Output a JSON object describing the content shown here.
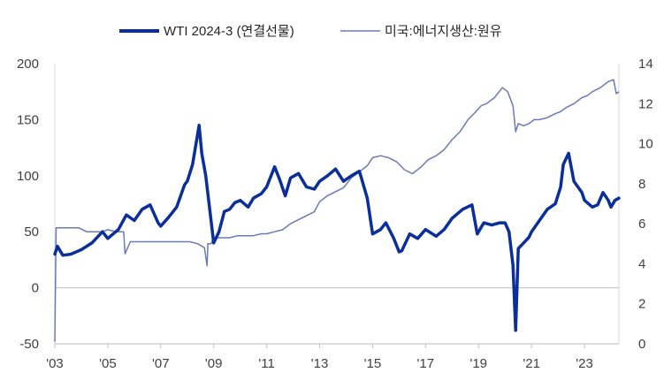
{
  "chart_data": {
    "type": "line",
    "legend": [
      {
        "label": "WTI 2024-3 (연결선물)",
        "color": "#0b2f9a",
        "axis": "left"
      },
      {
        "label": "미국:에너지생산:원유",
        "color": "#6b7ab8",
        "axis": "right"
      }
    ],
    "x_ticks": [
      "'03",
      "'05",
      "'07",
      "'09",
      "'11",
      "'13",
      "'15",
      "'17",
      "'19",
      "'21",
      "'23"
    ],
    "xlim": [
      2003.0,
      2024.3
    ],
    "y_left_ticks": [
      "-50",
      "0",
      "50",
      "100",
      "150",
      "200"
    ],
    "y_left_lim": [
      -50,
      200
    ],
    "y_right_ticks": [
      "0",
      "2",
      "4",
      "6",
      "8",
      "10",
      "12",
      "14"
    ],
    "y_right_lim": [
      0,
      14
    ],
    "legend_position": "top",
    "grid": false,
    "series": [
      {
        "name": "WTI 2024-3 (연결선물)",
        "axis": "left",
        "x": [
          2003.0,
          2003.1,
          2003.3,
          2003.6,
          2004.0,
          2004.4,
          2004.8,
          2005.0,
          2005.4,
          2005.7,
          2006.0,
          2006.3,
          2006.6,
          2006.9,
          2007.0,
          2007.3,
          2007.6,
          2007.9,
          2008.0,
          2008.2,
          2008.45,
          2008.55,
          2008.7,
          2008.9,
          2009.0,
          2009.2,
          2009.4,
          2009.6,
          2009.8,
          2010.0,
          2010.3,
          2010.5,
          2010.8,
          2011.0,
          2011.3,
          2011.5,
          2011.7,
          2011.9,
          2012.2,
          2012.5,
          2012.8,
          2013.0,
          2013.3,
          2013.6,
          2013.9,
          2014.2,
          2014.5,
          2014.8,
          2015.0,
          2015.3,
          2015.5,
          2015.8,
          2016.0,
          2016.1,
          2016.4,
          2016.7,
          2017.0,
          2017.4,
          2017.7,
          2018.0,
          2018.4,
          2018.75,
          2018.95,
          2019.2,
          2019.5,
          2019.8,
          2020.0,
          2020.15,
          2020.3,
          2020.4,
          2020.5,
          2020.7,
          2020.9,
          2021.0,
          2021.3,
          2021.6,
          2021.9,
          2022.1,
          2022.2,
          2022.4,
          2022.6,
          2022.9,
          2023.0,
          2023.3,
          2023.5,
          2023.7,
          2023.9,
          2024.0,
          2024.15,
          2024.3
        ],
        "values": [
          30,
          37,
          29,
          30,
          34,
          40,
          50,
          44,
          52,
          65,
          60,
          70,
          74,
          58,
          55,
          63,
          72,
          92,
          95,
          110,
          145,
          120,
          100,
          60,
          40,
          50,
          68,
          70,
          76,
          78,
          72,
          80,
          84,
          90,
          108,
          96,
          82,
          98,
          102,
          90,
          88,
          95,
          100,
          106,
          95,
          100,
          104,
          80,
          48,
          52,
          58,
          44,
          32,
          33,
          48,
          44,
          52,
          46,
          52,
          62,
          70,
          74,
          48,
          58,
          56,
          58,
          58,
          50,
          20,
          -38,
          35,
          40,
          45,
          50,
          60,
          70,
          75,
          90,
          110,
          120,
          95,
          85,
          78,
          72,
          74,
          85,
          78,
          72,
          78,
          80
        ]
      },
      {
        "name": "미국:에너지생산:원유",
        "axis": "right",
        "x": [
          2003.0,
          2003.05,
          2003.1,
          2003.3,
          2003.6,
          2003.9,
          2004.2,
          2004.5,
          2004.8,
          2005.0,
          2005.3,
          2005.6,
          2005.65,
          2005.85,
          2005.95,
          2006.05,
          2006.3,
          2006.6,
          2006.9,
          2007.2,
          2007.5,
          2007.8,
          2008.1,
          2008.4,
          2008.65,
          2008.75,
          2008.78,
          2008.9,
          2009.0,
          2009.3,
          2009.6,
          2009.9,
          2010.2,
          2010.5,
          2010.8,
          2011.0,
          2011.3,
          2011.6,
          2011.9,
          2012.2,
          2012.5,
          2012.8,
          2013.0,
          2013.3,
          2013.6,
          2013.9,
          2014.2,
          2014.5,
          2014.8,
          2015.0,
          2015.3,
          2015.6,
          2015.9,
          2016.2,
          2016.5,
          2016.8,
          2017.1,
          2017.4,
          2017.7,
          2018.0,
          2018.3,
          2018.6,
          2018.9,
          2019.1,
          2019.3,
          2019.6,
          2019.9,
          2020.1,
          2020.3,
          2020.4,
          2020.5,
          2020.7,
          2020.9,
          2021.1,
          2021.3,
          2021.6,
          2021.9,
          2022.1,
          2022.3,
          2022.6,
          2022.9,
          2023.1,
          2023.3,
          2023.6,
          2023.9,
          2024.1,
          2024.2,
          2024.3
        ],
        "values": [
          0.1,
          5.8,
          5.8,
          5.8,
          5.8,
          5.8,
          5.6,
          5.6,
          5.6,
          5.7,
          5.6,
          5.6,
          4.5,
          5.1,
          5.1,
          5.1,
          5.1,
          5.1,
          5.1,
          5.1,
          5.1,
          5.1,
          5.1,
          5.0,
          4.8,
          3.9,
          5.0,
          5.0,
          5.3,
          5.3,
          5.3,
          5.4,
          5.4,
          5.4,
          5.5,
          5.5,
          5.6,
          5.7,
          6.0,
          6.2,
          6.4,
          6.6,
          7.1,
          7.4,
          7.6,
          7.8,
          8.3,
          8.6,
          8.9,
          9.3,
          9.4,
          9.3,
          9.1,
          8.7,
          8.5,
          8.8,
          9.2,
          9.4,
          9.7,
          10.2,
          10.6,
          11.2,
          11.6,
          11.9,
          12.0,
          12.3,
          12.8,
          12.6,
          11.9,
          10.6,
          11.0,
          10.9,
          11.0,
          11.2,
          11.2,
          11.3,
          11.5,
          11.6,
          11.8,
          12.0,
          12.3,
          12.4,
          12.6,
          12.8,
          13.1,
          13.2,
          12.5,
          12.6
        ]
      }
    ]
  }
}
